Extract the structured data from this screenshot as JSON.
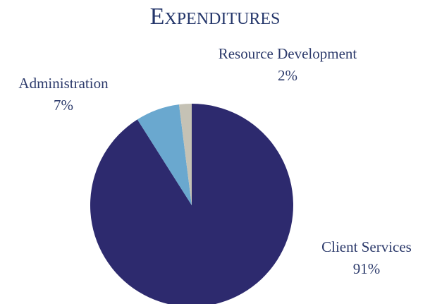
{
  "chart_data": {
    "type": "pie",
    "title": "Expenditures",
    "categories": [
      "Client Services",
      "Administration",
      "Resource Development"
    ],
    "values": [
      91,
      7,
      2
    ],
    "value_labels": [
      "91%",
      "7%",
      "2%"
    ],
    "colors": [
      "#2d2a6e",
      "#6aa8cf",
      "#c5c2b5"
    ]
  }
}
